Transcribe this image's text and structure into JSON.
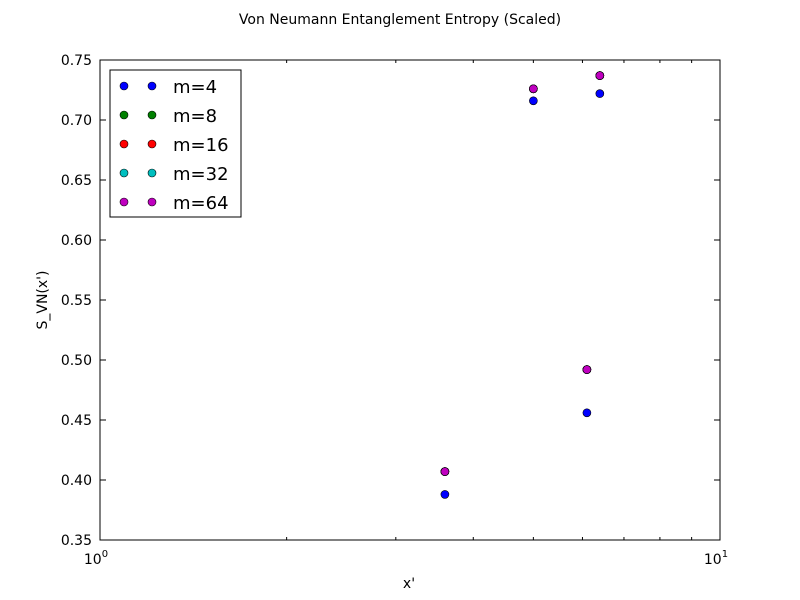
{
  "chart_data": {
    "type": "scatter",
    "title": "Von Neumann Entanglement Entropy (Scaled)",
    "xlabel": "x'",
    "ylabel": "S_VN(x')",
    "x_scale": "log",
    "xlim": [
      1,
      10
    ],
    "ylim": [
      0.35,
      0.75
    ],
    "x_ticks": [
      {
        "value": 1,
        "base": "10",
        "exp": "0"
      },
      {
        "value": 10,
        "base": "10",
        "exp": "1"
      }
    ],
    "y_ticks": [
      {
        "value": 0.35,
        "label": "0.35"
      },
      {
        "value": 0.4,
        "label": "0.40"
      },
      {
        "value": 0.45,
        "label": "0.45"
      },
      {
        "value": 0.5,
        "label": "0.50"
      },
      {
        "value": 0.55,
        "label": "0.55"
      },
      {
        "value": 0.6,
        "label": "0.60"
      },
      {
        "value": 0.65,
        "label": "0.65"
      },
      {
        "value": 0.7,
        "label": "0.70"
      },
      {
        "value": 0.75,
        "label": "0.75"
      }
    ],
    "grid": false,
    "legend_position": "top-left",
    "series": [
      {
        "name": "m=4",
        "color": "#0000ff",
        "x": [
          3.6,
          5.0,
          6.1,
          6.4
        ],
        "y": [
          0.388,
          0.716,
          0.456,
          0.722
        ]
      },
      {
        "name": "m=8",
        "color": "#008000",
        "x": [
          3.6,
          5.0,
          6.1,
          6.4
        ],
        "y": [
          0.407,
          0.726,
          0.492,
          0.737
        ]
      },
      {
        "name": "m=16",
        "color": "#ff0000",
        "x": [
          3.6,
          5.0,
          6.1,
          6.4
        ],
        "y": [
          0.407,
          0.726,
          0.492,
          0.737
        ]
      },
      {
        "name": "m=32",
        "color": "#00bfbf",
        "x": [
          3.6,
          5.0,
          6.1,
          6.4
        ],
        "y": [
          0.407,
          0.726,
          0.492,
          0.737
        ]
      },
      {
        "name": "m=64",
        "color": "#bf00bf",
        "x": [
          3.6,
          5.0,
          6.1,
          6.4
        ],
        "y": [
          0.407,
          0.726,
          0.492,
          0.737
        ]
      }
    ]
  }
}
